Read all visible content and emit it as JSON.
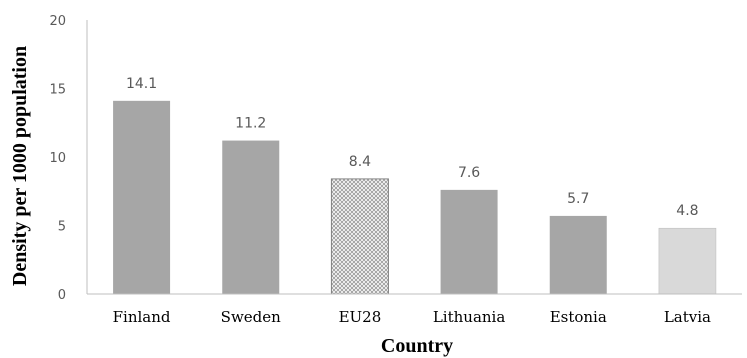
{
  "chart_data": {
    "type": "bar",
    "categories": [
      "Finland",
      "Sweden",
      "EU28",
      "Lithuania",
      "Estonia",
      "Latvia"
    ],
    "values": [
      14.1,
      11.2,
      8.4,
      7.6,
      5.7,
      4.8
    ],
    "data_labels": [
      "14.1",
      "11.2",
      "8.4",
      "7.6",
      "5.7",
      "4.8"
    ],
    "bar_styles": [
      "solid",
      "solid",
      "crosshatch",
      "solid",
      "solid",
      "light"
    ],
    "colors": {
      "solid": "#a6a6a6",
      "light": "#d9d9d9",
      "hatch_bg": "#ffffff",
      "hatch_line": "#9a9a9a",
      "outline": "#808080"
    },
    "title": "",
    "xlabel": "Country",
    "ylabel": "Density per 1000 population",
    "ylim": [
      0,
      20
    ],
    "yticks": [
      0,
      5,
      10,
      15,
      20
    ],
    "grid": false
  }
}
